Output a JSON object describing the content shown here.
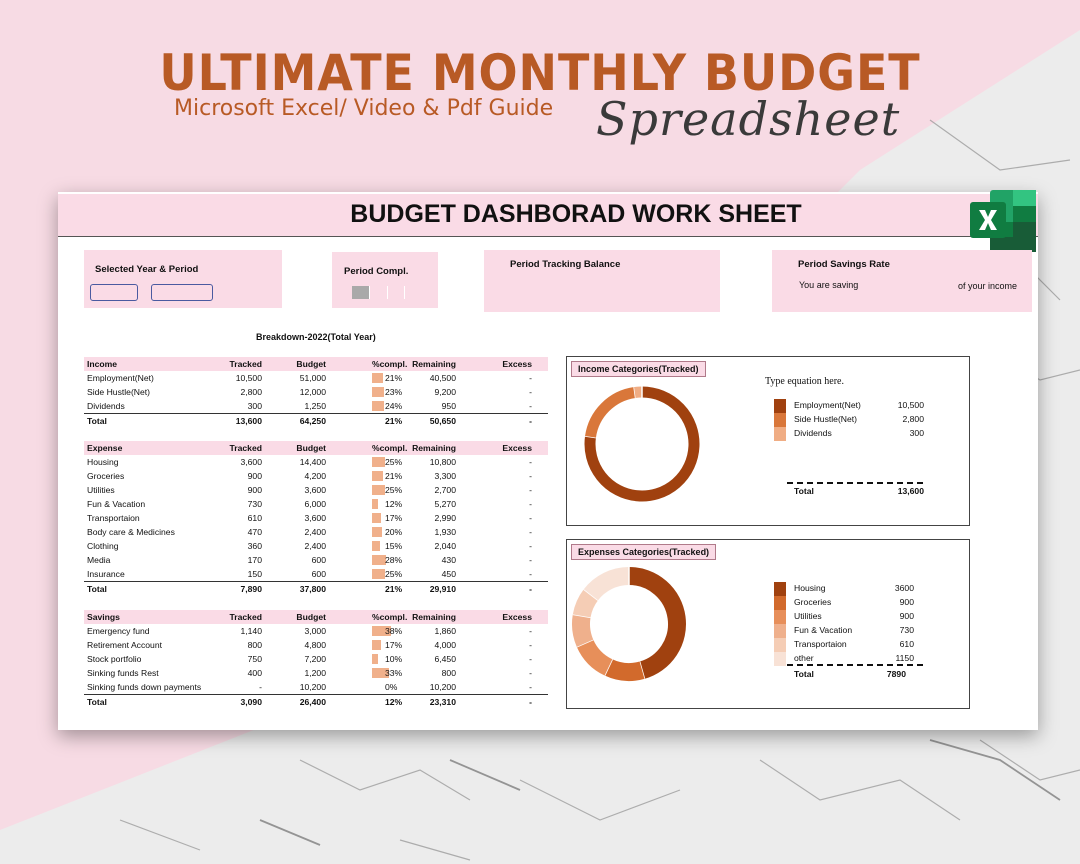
{
  "promo": {
    "headline": "ULTIMATE MONTHLY BUDGET",
    "subline": "Microsoft Excel/ Video & Pdf Guide",
    "script": "Spreadsheet"
  },
  "sheet": {
    "title": "BUDGET DASHBORAD WORK SHEET",
    "app_icon": "excel-icon",
    "cards": {
      "period": {
        "label": "Selected Year & Period"
      },
      "completion": {
        "label": "Period Compl.",
        "progress": 0.25
      },
      "balance": {
        "label": "Period Tracking Balance"
      },
      "savings": {
        "label": "Period Savings Rate",
        "text_left": "You are saving",
        "text_right": "of your income"
      }
    },
    "breakdown_label": "Breakdown-2022(Total Year)",
    "columns": [
      "Tracked",
      "Budget",
      "%compl.",
      "Remaining",
      "Excess"
    ],
    "sections": [
      {
        "name": "Income",
        "rows": [
          {
            "name": "Employment(Net)",
            "tracked": "10,500",
            "budget": "51,000",
            "pct": "21%",
            "remaining": "40,500",
            "excess": "-"
          },
          {
            "name": "Side Hustle(Net)",
            "tracked": "2,800",
            "budget": "12,000",
            "pct": "23%",
            "remaining": "9,200",
            "excess": "-"
          },
          {
            "name": "Dividends",
            "tracked": "300",
            "budget": "1,250",
            "pct": "24%",
            "remaining": "950",
            "excess": "-"
          }
        ],
        "total": {
          "name": "Total",
          "tracked": "13,600",
          "budget": "64,250",
          "pct": "21%",
          "remaining": "50,650",
          "excess": "-"
        }
      },
      {
        "name": "Expense",
        "rows": [
          {
            "name": "Housing",
            "tracked": "3,600",
            "budget": "14,400",
            "pct": "25%",
            "remaining": "10,800",
            "excess": "-"
          },
          {
            "name": "Groceries",
            "tracked": "900",
            "budget": "4,200",
            "pct": "21%",
            "remaining": "3,300",
            "excess": "-"
          },
          {
            "name": "Utilities",
            "tracked": "900",
            "budget": "3,600",
            "pct": "25%",
            "remaining": "2,700",
            "excess": "-"
          },
          {
            "name": "Fun & Vacation",
            "tracked": "730",
            "budget": "6,000",
            "pct": "12%",
            "remaining": "5,270",
            "excess": "-"
          },
          {
            "name": "Transportaion",
            "tracked": "610",
            "budget": "3,600",
            "pct": "17%",
            "remaining": "2,990",
            "excess": "-"
          },
          {
            "name": "Body care & Medicines",
            "tracked": "470",
            "budget": "2,400",
            "pct": "20%",
            "remaining": "1,930",
            "excess": "-"
          },
          {
            "name": "Clothing",
            "tracked": "360",
            "budget": "2,400",
            "pct": "15%",
            "remaining": "2,040",
            "excess": "-"
          },
          {
            "name": "Media",
            "tracked": "170",
            "budget": "600",
            "pct": "28%",
            "remaining": "430",
            "excess": "-"
          },
          {
            "name": "Insurance",
            "tracked": "150",
            "budget": "600",
            "pct": "25%",
            "remaining": "450",
            "excess": "-"
          }
        ],
        "total": {
          "name": "Total",
          "tracked": "7,890",
          "budget": "37,800",
          "pct": "21%",
          "remaining": "29,910",
          "excess": "-"
        }
      },
      {
        "name": "Savings",
        "rows": [
          {
            "name": "Emergency fund",
            "tracked": "1,140",
            "budget": "3,000",
            "pct": "38%",
            "remaining": "1,860",
            "excess": "-"
          },
          {
            "name": "Retirement Account",
            "tracked": "800",
            "budget": "4,800",
            "pct": "17%",
            "remaining": "4,000",
            "excess": "-"
          },
          {
            "name": "Stock portfolio",
            "tracked": "750",
            "budget": "7,200",
            "pct": "10%",
            "remaining": "6,450",
            "excess": "-"
          },
          {
            "name": "Sinking funds Rest",
            "tracked": "400",
            "budget": "1,200",
            "pct": "33%",
            "remaining": "800",
            "excess": "-"
          },
          {
            "name": "Sinking funds down payments",
            "tracked": "-",
            "budget": "10,200",
            "pct": "0%",
            "remaining": "10,200",
            "excess": "-"
          }
        ],
        "total": {
          "name": "Total",
          "tracked": "3,090",
          "budget": "26,400",
          "pct": "12%",
          "remaining": "23,310",
          "excess": "-"
        }
      }
    ],
    "income_chart": {
      "title": "Income Categories(Tracked)",
      "equation_text": "Type equation here.",
      "legend": [
        {
          "name": "Employment(Net)",
          "value": "10,500",
          "color": "#a0410f"
        },
        {
          "name": "Side Hustle(Net)",
          "value": "2,800",
          "color": "#d9773a"
        },
        {
          "name": "Dividends",
          "value": "300",
          "color": "#f0ad84"
        }
      ],
      "total": {
        "name": "Total",
        "value": "13,600"
      }
    },
    "expense_chart": {
      "title": "Expenses Categories(Tracked)",
      "legend": [
        {
          "name": "Housing",
          "value": "3600",
          "color": "#a0410f"
        },
        {
          "name": "Groceries",
          "value": "900",
          "color": "#d26a2c"
        },
        {
          "name": "Utilities",
          "value": "900",
          "color": "#e78f5a"
        },
        {
          "name": "Fun & Vacation",
          "value": "730",
          "color": "#efb08c"
        },
        {
          "name": "Transportaion",
          "value": "610",
          "color": "#f5cdb5"
        },
        {
          "name": "other",
          "value": "1150",
          "color": "#f8e2d6"
        }
      ],
      "total": {
        "name": "Total",
        "value": "7890"
      }
    }
  },
  "chart_data": [
    {
      "type": "pie",
      "title": "Income Categories(Tracked)",
      "categories": [
        "Employment(Net)",
        "Side Hustle(Net)",
        "Dividends"
      ],
      "values": [
        10500,
        2800,
        300
      ]
    },
    {
      "type": "pie",
      "title": "Expenses Categories(Tracked)",
      "categories": [
        "Housing",
        "Groceries",
        "Utilities",
        "Fun & Vacation",
        "Transportaion",
        "other"
      ],
      "values": [
        3600,
        900,
        900,
        730,
        610,
        1150
      ]
    }
  ]
}
